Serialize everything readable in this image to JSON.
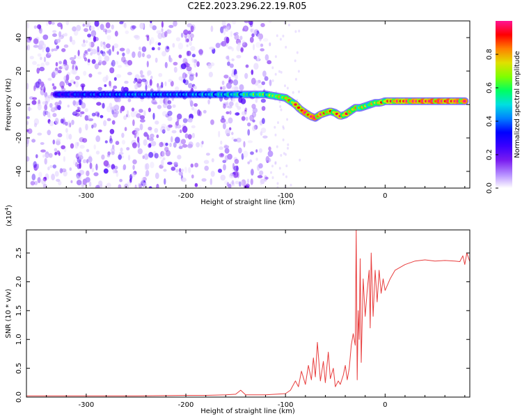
{
  "title": "C2E2.2023.296.22.19.R05",
  "chart_data": [
    {
      "type": "heatmap",
      "xlabel": "Height of straight line (km)",
      "ylabel": "Frequency (Hz)",
      "xlim": [
        -360,
        85
      ],
      "ylim": [
        -50,
        50
      ],
      "xticks": [
        -300,
        -200,
        -100,
        0
      ],
      "yticks": [
        40,
        20,
        0,
        -20,
        -40
      ],
      "grid": false,
      "colorbar": {
        "label": "Normalized spectral amplitude",
        "range": [
          0.0,
          1.0
        ],
        "ticks": [
          0.0,
          0.2,
          0.4,
          0.6,
          0.8
        ],
        "colors": [
          "#ffffff",
          "#b48cff",
          "#7a1cf0",
          "#3a00ff",
          "#0000ff",
          "#0080ff",
          "#00e0e0",
          "#00ff60",
          "#80ff00",
          "#e0e000",
          "#ff8000",
          "#ff0000",
          "#ff1493"
        ]
      },
      "ridge": {
        "x": [
          -330,
          -300,
          -250,
          -200,
          -150,
          -120,
          -110,
          -100,
          -95,
          -90,
          -85,
          -80,
          -75,
          -70,
          -65,
          -60,
          -55,
          -50,
          -45,
          -40,
          -35,
          -30,
          -25,
          -20,
          -15,
          -10,
          -5,
          0,
          10,
          30,
          50,
          80
        ],
        "y": [
          6,
          6,
          6,
          6,
          6,
          6,
          5,
          4,
          2,
          0,
          -3,
          -5,
          -7,
          -8,
          -6,
          -5,
          -4,
          -5,
          -7,
          -6,
          -4,
          -2,
          -2,
          -1,
          0,
          1,
          1,
          2,
          2,
          2,
          2,
          2
        ],
        "amplitude": [
          0.3,
          0.35,
          0.4,
          0.4,
          0.5,
          0.6,
          0.65,
          0.7,
          0.75,
          0.8,
          0.85,
          0.9,
          0.9,
          0.95,
          0.85,
          0.8,
          0.75,
          0.8,
          0.85,
          0.8,
          0.75,
          0.7,
          0.7,
          0.65,
          0.65,
          0.7,
          0.75,
          0.8,
          0.85,
          0.9,
          0.95,
          0.9
        ]
      }
    },
    {
      "type": "line",
      "xlabel": "Height of straight line (km)",
      "ylabel": "SNR (10 * v/v)",
      "multiplier": "(x10",
      "multiplier_exp": "4",
      "multiplier_close": ")",
      "xlim": [
        -360,
        85
      ],
      "ylim": [
        0,
        2.9
      ],
      "xticks": [
        -300,
        -200,
        -100,
        0
      ],
      "yticks": [
        0.0,
        0.5,
        1.0,
        1.5,
        2.0,
        2.5
      ],
      "line_color": "#e83c3c",
      "grid": false,
      "series": [
        {
          "x": [
            -360,
            -300,
            -250,
            -200,
            -180,
            -160,
            -150,
            -145,
            -140,
            -120,
            -110,
            -100,
            -95,
            -90,
            -87,
            -84,
            -80,
            -77,
            -74,
            -72,
            -70,
            -68,
            -65,
            -62,
            -60,
            -57,
            -55,
            -52,
            -50,
            -47,
            -45,
            -42,
            -40,
            -38,
            -36,
            -34,
            -32,
            -30,
            -29,
            -28,
            -27,
            -26,
            -25,
            -24,
            -22,
            -20,
            -18,
            -16,
            -15,
            -14,
            -12,
            -10,
            -8,
            -6,
            -4,
            -2,
            0,
            5,
            10,
            15,
            20,
            30,
            40,
            50,
            60,
            70,
            75,
            78,
            80,
            82,
            85
          ],
          "y": [
            0.02,
            0.02,
            0.02,
            0.03,
            0.03,
            0.04,
            0.05,
            0.12,
            0.04,
            0.04,
            0.05,
            0.06,
            0.12,
            0.28,
            0.18,
            0.45,
            0.22,
            0.55,
            0.3,
            0.68,
            0.35,
            0.95,
            0.28,
            0.62,
            0.25,
            0.78,
            0.32,
            0.5,
            0.18,
            0.28,
            0.22,
            0.38,
            0.55,
            0.3,
            0.5,
            0.9,
            1.1,
            0.9,
            2.9,
            0.3,
            1.5,
            1.0,
            2.4,
            0.6,
            2.05,
            1.4,
            1.85,
            2.2,
            1.2,
            2.5,
            1.4,
            2.2,
            1.65,
            2.2,
            1.8,
            2.05,
            1.85,
            2.05,
            2.2,
            2.25,
            2.3,
            2.36,
            2.38,
            2.36,
            2.37,
            2.36,
            2.35,
            2.45,
            2.3,
            2.5,
            2.35
          ]
        }
      ]
    }
  ]
}
